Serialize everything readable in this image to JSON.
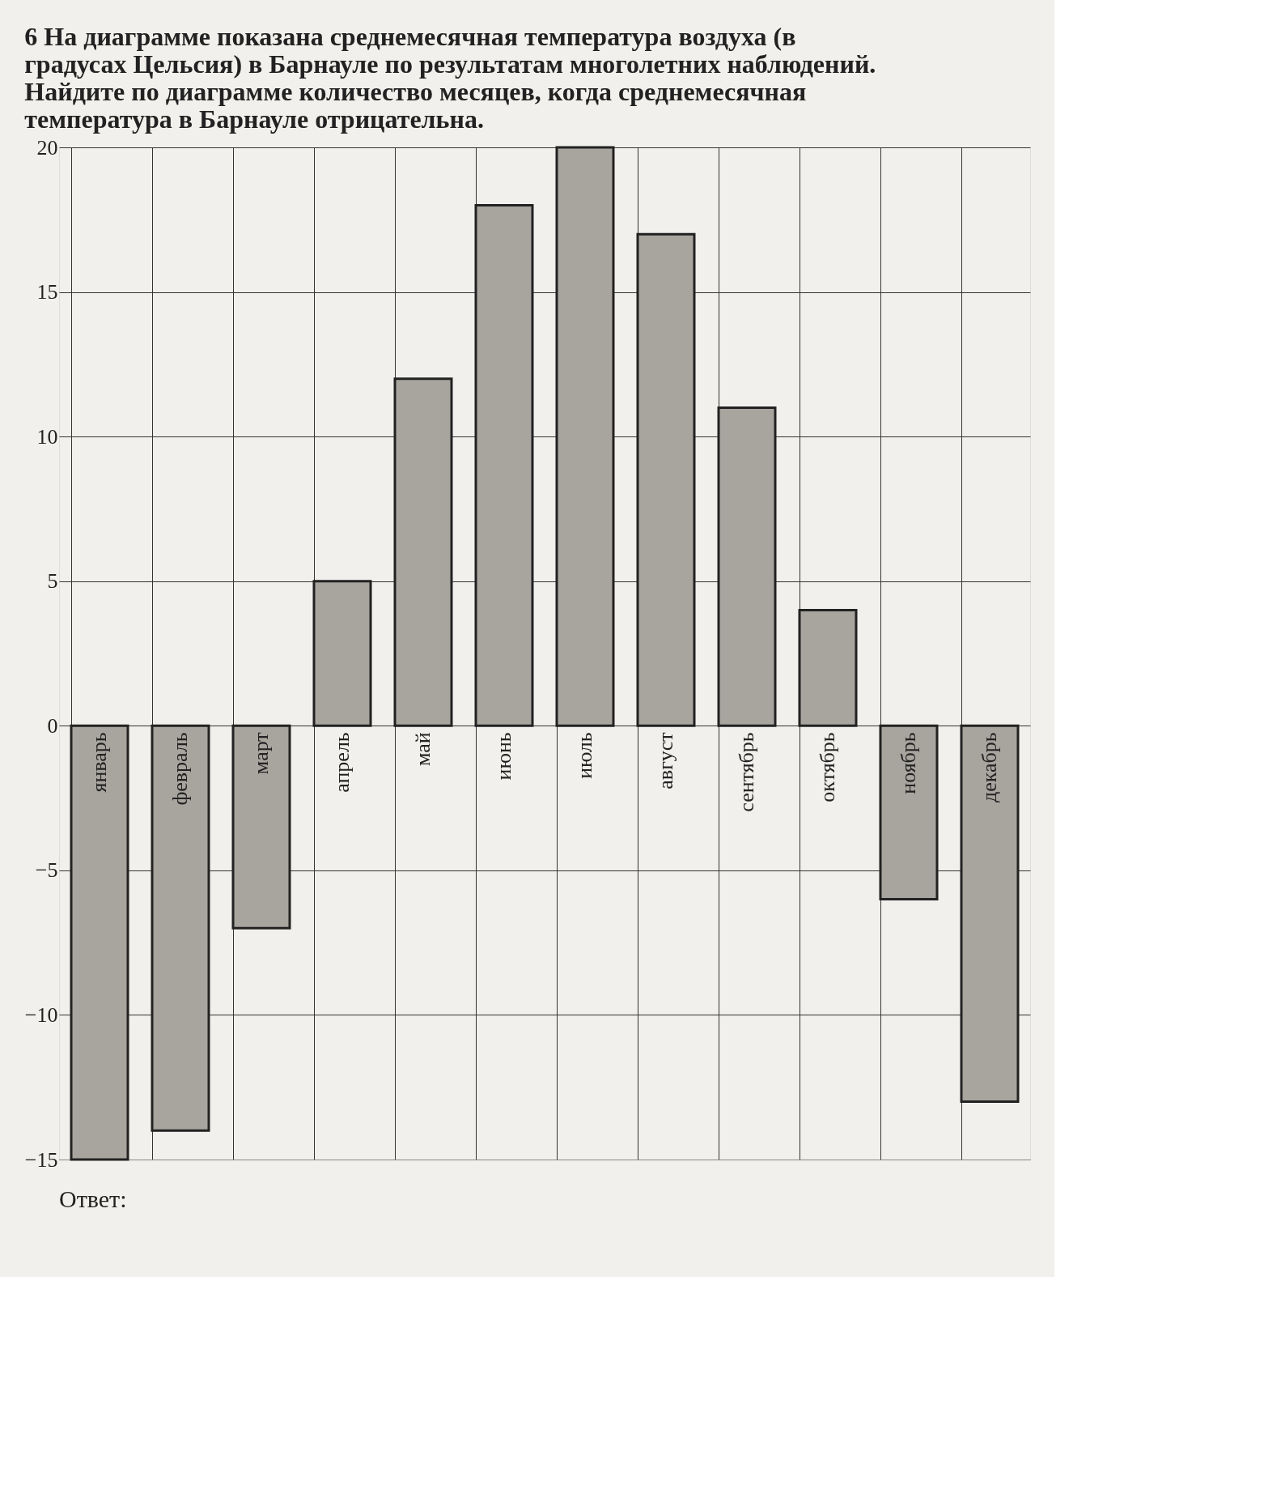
{
  "chart_data": {
    "type": "bar",
    "title": "6  На диаграмме показана среднемесячная температура воздуха (в градусах Цельсия) в Барнауле по результатам многолетних наблюдений. Найдите по диаграмме количество месяцев, когда среднемесячная температура в Барнауле отрицательна.",
    "categories": [
      "январь",
      "февраль",
      "март",
      "апрель",
      "май",
      "июнь",
      "июль",
      "август",
      "сентябрь",
      "октябрь",
      "ноябрь",
      "декабрь"
    ],
    "values": [
      -15,
      -14,
      -7,
      5,
      12,
      18,
      20,
      17,
      11,
      4,
      -6,
      -13
    ],
    "color": "#a8a49e",
    "ylim": [
      -15,
      20
    ],
    "yticks": [
      -15,
      -10,
      -5,
      0,
      5,
      10,
      15,
      20
    ],
    "grid": true,
    "annotations": [
      "Ответ:"
    ]
  }
}
